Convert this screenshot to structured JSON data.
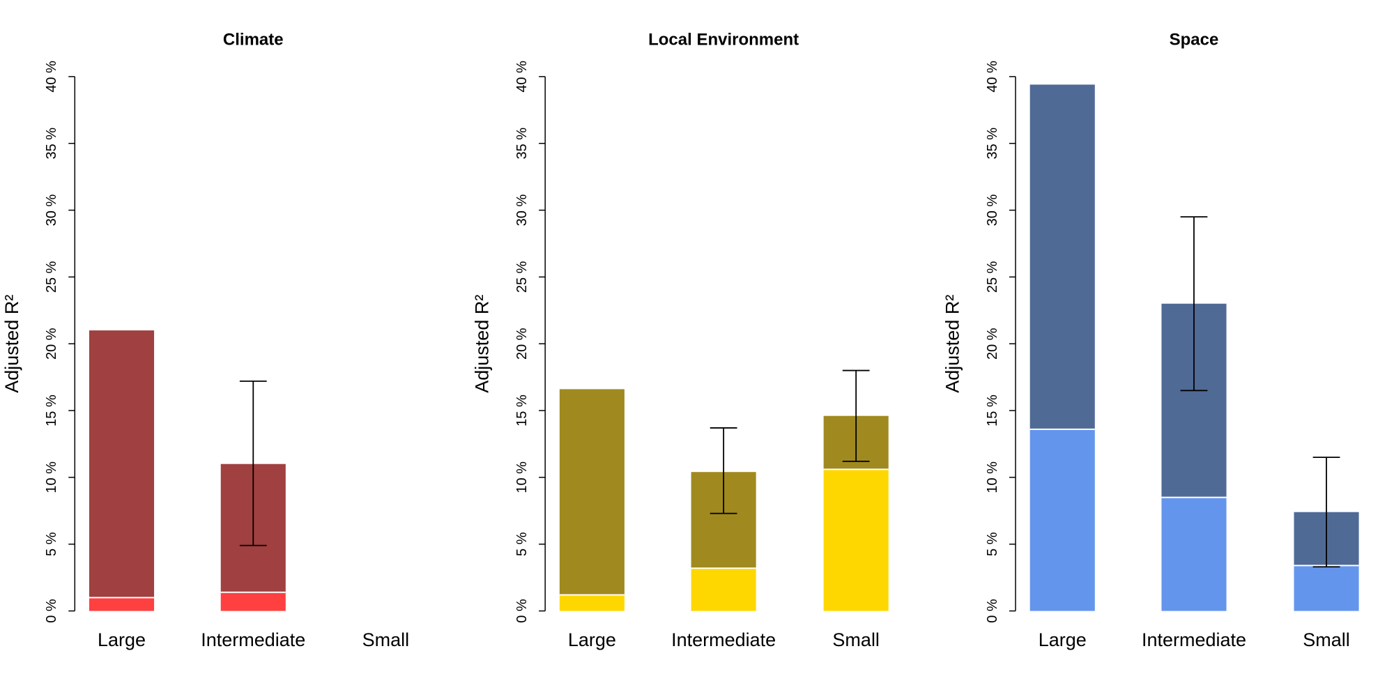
{
  "chart_data": [
    {
      "type": "bar",
      "title": "Climate",
      "ylabel": "Adjusted R²",
      "xlabel": "",
      "categories": [
        "Large",
        "Intermediate",
        "Small"
      ],
      "ylim": [
        0,
        40
      ],
      "yticks": [
        0,
        5,
        10,
        15,
        20,
        25,
        30,
        35,
        40
      ],
      "ytick_labels": [
        "0 %",
        "5 %",
        "10 %",
        "15 %",
        "20 %",
        "25 %",
        "30 %",
        "35 %",
        "40 %"
      ],
      "series": [
        {
          "values": [
            1.0,
            1.4,
            0
          ],
          "color": "#FF4040"
        },
        {
          "values": [
            20.0,
            9.6,
            0
          ],
          "color": "#A04040"
        }
      ],
      "totals": [
        21.0,
        11.0,
        0
      ],
      "error_bars": [
        null,
        {
          "low": 4.9,
          "high": 17.2
        },
        null
      ]
    },
    {
      "type": "bar",
      "title": "Local Environment",
      "ylabel": "Adjusted R²",
      "xlabel": "",
      "categories": [
        "Large",
        "Intermediate",
        "Small"
      ],
      "ylim": [
        0,
        40
      ],
      "yticks": [
        0,
        5,
        10,
        15,
        20,
        25,
        30,
        35,
        40
      ],
      "ytick_labels": [
        "0 %",
        "5 %",
        "10 %",
        "15 %",
        "20 %",
        "25 %",
        "30 %",
        "35 %",
        "40 %"
      ],
      "series": [
        {
          "values": [
            1.2,
            3.2,
            10.6
          ],
          "color": "#FFD700"
        },
        {
          "values": [
            15.4,
            7.2,
            4.0
          ],
          "color": "#A08A20"
        }
      ],
      "totals": [
        16.6,
        10.4,
        14.6
      ],
      "error_bars": [
        null,
        {
          "low": 7.3,
          "high": 13.7
        },
        {
          "low": 11.2,
          "high": 18.0
        }
      ]
    },
    {
      "type": "bar",
      "title": "Space",
      "ylabel": "Adjusted R²",
      "xlabel": "",
      "categories": [
        "Large",
        "Intermediate",
        "Small"
      ],
      "ylim": [
        0,
        40
      ],
      "yticks": [
        0,
        5,
        10,
        15,
        20,
        25,
        30,
        35,
        40
      ],
      "ytick_labels": [
        "0 %",
        "5 %",
        "10 %",
        "15 %",
        "20 %",
        "25 %",
        "30 %",
        "35 %",
        "40 %"
      ],
      "series": [
        {
          "values": [
            13.6,
            8.5,
            3.4
          ],
          "color": "#6495ED"
        },
        {
          "values": [
            25.8,
            14.5,
            4.0
          ],
          "color": "#506A96"
        }
      ],
      "totals": [
        39.4,
        23.0,
        7.4
      ],
      "error_bars": [
        null,
        {
          "low": 16.5,
          "high": 29.5
        },
        {
          "low": 3.3,
          "high": 11.5
        }
      ]
    }
  ]
}
